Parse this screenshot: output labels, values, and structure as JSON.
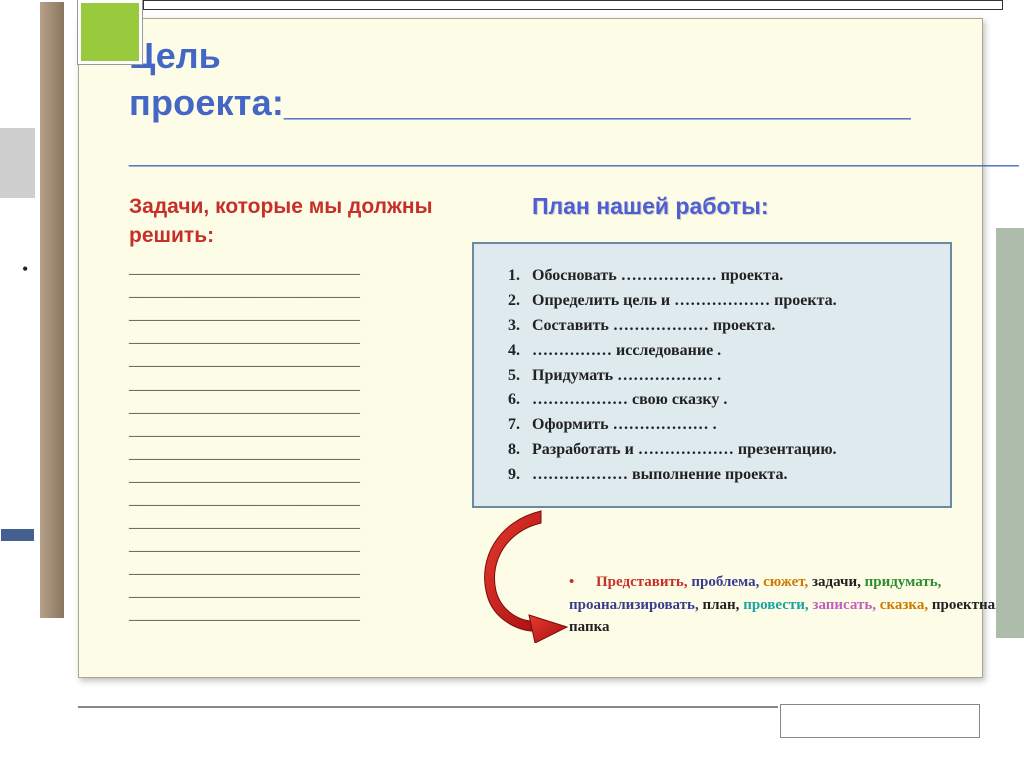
{
  "colors": {
    "slide_bg": "#fdfce6",
    "title_color": "#4366c7",
    "tasks_title_color": "#c72f2a",
    "plan_title_color": "#4f5fd1",
    "plan_box_bg": "#dfeaef",
    "plan_box_border": "#6a89a3",
    "arrow_fill": "#c72020",
    "arrow_stroke": "#8a0e0e",
    "decor_green": "#99c93c",
    "decor_brown": "#8a765f",
    "decor_sage": "#aebcab",
    "decor_blue": "#455f91"
  },
  "typography": {
    "title_fontsize": 36,
    "section_title_fontsize": 22,
    "body_fontsize": 16,
    "title_font": "Verdana",
    "body_font": "Times New Roman"
  },
  "title": {
    "line1": "Цель",
    "line2_prefix": "проекта:",
    "underline_run1": "_______________________________",
    "underline_run2": "____________________________________________"
  },
  "tasks": {
    "heading": "Задачи, которые мы должны решить:",
    "blank_lines_count": 16,
    "blank_line": "_________________________________"
  },
  "plan": {
    "heading": "План нашей работы:",
    "items": [
      "Обосновать ………………   проекта.",
      "Определить цель и ………………   проекта.",
      "Составить ………………  проекта.",
      "……………  исследование .",
      "Придумать ………………  .",
      "………………  свою сказку .",
      "Оформить ………………  .",
      "Разработать и ………………  презентацию.",
      "………………  выполнение проекта."
    ]
  },
  "word_bank": {
    "words": [
      {
        "text": "Представить,",
        "color": "#c72f2a"
      },
      {
        "text": "проблема,",
        "color": "#3a3d8e"
      },
      {
        "text": "сюжет,",
        "color": "#cc7a00"
      },
      {
        "text": "задачи,",
        "color": "#222222"
      },
      {
        "text": "придумать,",
        "color": "#2e8b2e"
      },
      {
        "text": "проанализировать,",
        "color": "#3a3d8e"
      },
      {
        "text": "план,",
        "color": "#222222"
      },
      {
        "text": "провести,",
        "color": "#19a3a3"
      },
      {
        "text": "записать,",
        "color": "#c060c0"
      },
      {
        "text": "сказка,",
        "color": "#cc7a00"
      },
      {
        "text": "проектная папка",
        "color": "#222222"
      }
    ]
  }
}
